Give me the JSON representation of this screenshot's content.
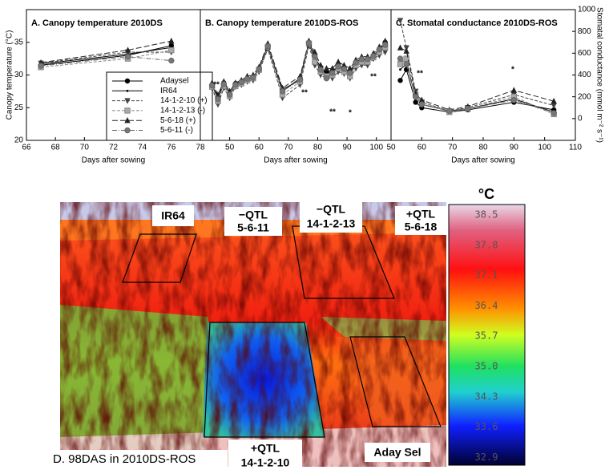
{
  "chart_data": [
    {
      "type": "line",
      "title": "A. Canopy temperature 2010DS",
      "xlabel": "Days after sowing",
      "ylabel": "Canopy temperature (°C)",
      "x": [
        67,
        73,
        76
      ],
      "xlim": [
        66,
        78
      ],
      "xticks": [
        66,
        68,
        70,
        72,
        74,
        76,
        78
      ],
      "ylim": [
        20,
        40
      ],
      "yticks": [
        20,
        25,
        30,
        35
      ],
      "legend": "lower right",
      "series": [
        {
          "name": "Adaysel",
          "color": "#000000",
          "dash": "solid",
          "marker": "circle",
          "values": [
            31.5,
            33,
            34.5
          ]
        },
        {
          "name": "IR64",
          "color": "#000000",
          "dash": "solid",
          "marker": "dot",
          "values": [
            31.7,
            33.2,
            34.2
          ]
        },
        {
          "name": "14-1-2-10 (+)",
          "color": "#444444",
          "dash": "dashed",
          "marker": "triangle-down",
          "values": [
            31.8,
            33.5,
            33.5
          ]
        },
        {
          "name": "14-1-2-13 (-)",
          "color": "#888888",
          "dash": "dashed",
          "marker": "square",
          "values": [
            31.2,
            32.5,
            33.8
          ]
        },
        {
          "name": "5-6-18 (+)",
          "color": "#222222",
          "dash": "longdash",
          "marker": "triangle-up",
          "values": [
            31.9,
            33.8,
            35.2
          ]
        },
        {
          "name": "5-6-11 (-)",
          "color": "#666666",
          "dash": "dashdot",
          "marker": "circle-grey",
          "values": [
            31.4,
            32.8,
            32.2
          ]
        }
      ]
    },
    {
      "type": "line",
      "title": "B. Canopy temperature 2010DS-ROS",
      "xlabel": "Days after sowing",
      "x": [
        44,
        46,
        48,
        50,
        52,
        54,
        56,
        58,
        60,
        63,
        68,
        74,
        77,
        79,
        81,
        83,
        85,
        87,
        89,
        91,
        93,
        95,
        97,
        99,
        101,
        103
      ],
      "xlim": [
        40,
        105
      ],
      "xticks": [
        50,
        60,
        70,
        80,
        90,
        100
      ],
      "ylim": [
        20,
        40
      ],
      "annotations": [
        "**",
        "**",
        "**",
        "*",
        "**"
      ],
      "series": [
        {
          "color": "#000000",
          "dash": "solid",
          "marker": "circle",
          "values": [
            28.5,
            26.5,
            28.8,
            27,
            28.7,
            29,
            29.5,
            29.5,
            31,
            34.5,
            27.5,
            29.5,
            35,
            33,
            31,
            30.5,
            30.5,
            31.5,
            31,
            30.5,
            32,
            32.5,
            32.5,
            33,
            34,
            35
          ]
        },
        {
          "color": "#000000",
          "dash": "solid",
          "marker": "dot",
          "values": [
            28.3,
            26.8,
            28.5,
            27.2,
            28.4,
            28.8,
            29.3,
            29.8,
            30.8,
            34.2,
            27.8,
            29.2,
            34.8,
            32.5,
            30.8,
            30.2,
            30.5,
            31.2,
            30.8,
            30.2,
            31.8,
            32.3,
            32.2,
            32.8,
            33.8,
            34.8
          ]
        },
        {
          "color": "#444444",
          "dash": "dashed",
          "marker": "triangle-down",
          "values": [
            28,
            25.5,
            28,
            26.5,
            28.2,
            28.5,
            29,
            29.2,
            30.5,
            34,
            26.5,
            28.5,
            34.5,
            31.5,
            30,
            29.5,
            29.5,
            30.5,
            30.2,
            29.5,
            31,
            31.5,
            31.5,
            32.5,
            33,
            33.5
          ]
        },
        {
          "color": "#888888",
          "dash": "dashed",
          "marker": "square",
          "values": [
            28.2,
            26,
            28.3,
            26.8,
            28.3,
            28.7,
            29.2,
            29.5,
            30.8,
            34.3,
            27,
            29,
            34.8,
            32,
            30.5,
            29.8,
            30,
            31,
            30.5,
            29.8,
            31.5,
            32,
            32,
            32.7,
            33.5,
            34.2
          ]
        },
        {
          "color": "#222222",
          "dash": "longdash",
          "marker": "triangle-up",
          "values": [
            28.8,
            27,
            29,
            27.5,
            28.8,
            29.2,
            29.8,
            30,
            31.2,
            34.8,
            28,
            29.8,
            35.2,
            33.5,
            31.5,
            31,
            31,
            32,
            31.5,
            31,
            32.3,
            32.8,
            32.8,
            33.3,
            34.3,
            35.2
          ]
        },
        {
          "color": "#666666",
          "dash": "dashdot",
          "marker": "circle-grey",
          "values": [
            28.4,
            26.3,
            28.6,
            27,
            28.5,
            28.9,
            29.4,
            29.6,
            30.9,
            34.4,
            27.5,
            29.3,
            34.9,
            32.8,
            30.8,
            29.5,
            30.3,
            31.3,
            30.9,
            30.3,
            31.9,
            32.4,
            32.4,
            32.9,
            33.9,
            34.6
          ]
        }
      ]
    },
    {
      "type": "line",
      "title": "C. Stomatal conductance 2010DS-ROS",
      "xlabel": "Days after sowing",
      "ylabel": "Stomatal conductance (mmol m⁻² s⁻¹)",
      "x": [
        53,
        55,
        58,
        60,
        69,
        75,
        90,
        103
      ],
      "xlim": [
        50,
        110
      ],
      "xticks": [
        50,
        60,
        70,
        80,
        90,
        100,
        110
      ],
      "ylim": [
        -200,
        1000
      ],
      "yticks": [
        0,
        200,
        400,
        600,
        800,
        1000
      ],
      "annotations": [
        "**",
        "*"
      ],
      "series": [
        {
          "color": "#000000",
          "dash": "solid",
          "marker": "circle",
          "values": [
            350,
            450,
            150,
            100,
            60,
            80,
            150,
            80
          ]
        },
        {
          "color": "#000000",
          "dash": "solid",
          "marker": "dot",
          "values": [
            450,
            500,
            200,
            130,
            70,
            90,
            180,
            60
          ]
        },
        {
          "color": "#444444",
          "dash": "dashed",
          "marker": "triangle-down",
          "values": [
            900,
            650,
            250,
            150,
            70,
            100,
            220,
            120
          ]
        },
        {
          "color": "#888888",
          "dash": "dashed",
          "marker": "square",
          "values": [
            500,
            550,
            220,
            150,
            60,
            90,
            200,
            40
          ]
        },
        {
          "color": "#222222",
          "dash": "longdash",
          "marker": "triangle-up",
          "values": [
            650,
            620,
            230,
            170,
            80,
            110,
            260,
            160
          ]
        },
        {
          "color": "#666666",
          "dash": "dashdot",
          "marker": "circle-grey",
          "values": [
            550,
            500,
            200,
            130,
            70,
            90,
            170,
            50
          ]
        }
      ]
    }
  ],
  "thermal_image": {
    "caption": "D. 98DAS in 2010DS-ROS",
    "unit": "°C",
    "scale_labels": [
      "38.5",
      "37.8",
      "37.1",
      "36.4",
      "35.7",
      "35.0",
      "34.3",
      "33.6",
      "32.9"
    ],
    "plot_labels": [
      {
        "line1": "IR64"
      },
      {
        "line1": "−QTL",
        "line2": "5-6-11"
      },
      {
        "line1": "−QTL",
        "line2": "14-1-2-13"
      },
      {
        "line1": "+QTL",
        "line2": "5-6-18"
      },
      {
        "line1": "+QTL",
        "line2": "14-1-2-10"
      },
      {
        "line1": "Aday Sel"
      }
    ]
  }
}
